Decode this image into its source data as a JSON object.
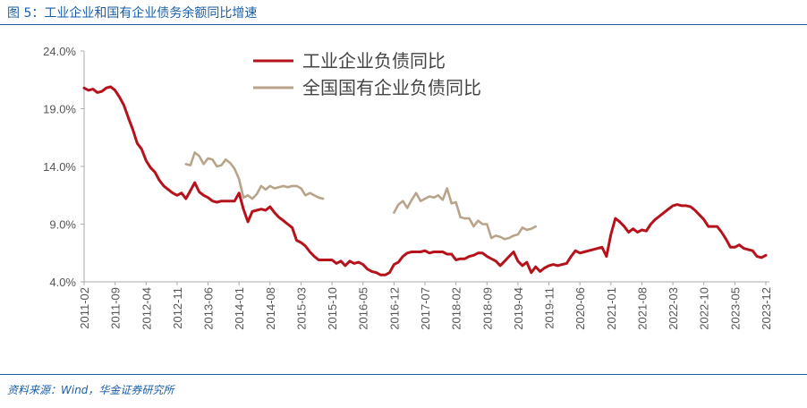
{
  "figure": {
    "title": "图 5：工业企业和国有企业债务余额同比增速",
    "source": "资料来源：Wind，华金证券研究所"
  },
  "colors": {
    "industrial": "#b5121b",
    "soe": "#b8a48a",
    "accent": "#1a5ea8",
    "axis": "#aaaaaa"
  },
  "chart_data": {
    "type": "line",
    "title": "",
    "xlabel": "",
    "ylabel": "",
    "ylim": [
      4.0,
      24.0
    ],
    "yticks": [
      "4.0%",
      "9.0%",
      "14.0%",
      "19.0%",
      "24.0%"
    ],
    "ytick_values": [
      4,
      9,
      14,
      19,
      24
    ],
    "xticks": [
      "2011-02",
      "2011-09",
      "2012-04",
      "2012-11",
      "2013-06",
      "2014-01",
      "2014-08",
      "2015-03",
      "2015-10",
      "2016-05",
      "2016-12",
      "2017-07",
      "2018-02",
      "2018-09",
      "2019-04",
      "2019-11",
      "2020-06",
      "2021-01",
      "2021-08",
      "2022-03",
      "2022-10",
      "2023-05",
      "2023-12"
    ],
    "xrange": [
      "2011-02",
      "2023-12"
    ],
    "grid": false,
    "legend_position": "top-center",
    "series": [
      {
        "name": "工业企业负债同比",
        "color": "#b5121b",
        "points": [
          [
            "2011-02",
            20.8
          ],
          [
            "2011-03",
            20.6
          ],
          [
            "2011-04",
            20.7
          ],
          [
            "2011-05",
            20.4
          ],
          [
            "2011-06",
            20.5
          ],
          [
            "2011-07",
            20.8
          ],
          [
            "2011-08",
            20.9
          ],
          [
            "2011-09",
            20.6
          ],
          [
            "2011-10",
            20.0
          ],
          [
            "2011-11",
            19.3
          ],
          [
            "2011-12",
            18.2
          ],
          [
            "2012-01",
            17.2
          ],
          [
            "2012-02",
            16.0
          ],
          [
            "2012-03",
            15.5
          ],
          [
            "2012-04",
            14.5
          ],
          [
            "2012-05",
            13.9
          ],
          [
            "2012-06",
            13.5
          ],
          [
            "2012-07",
            12.8
          ],
          [
            "2012-08",
            12.3
          ],
          [
            "2012-09",
            12.0
          ],
          [
            "2012-10",
            11.7
          ],
          [
            "2012-11",
            11.5
          ],
          [
            "2012-12",
            11.7
          ],
          [
            "2013-01",
            11.2
          ],
          [
            "2013-02",
            11.9
          ],
          [
            "2013-03",
            12.6
          ],
          [
            "2013-04",
            11.8
          ],
          [
            "2013-05",
            11.5
          ],
          [
            "2013-06",
            11.3
          ],
          [
            "2013-07",
            11.0
          ],
          [
            "2013-08",
            10.9
          ],
          [
            "2013-09",
            11.0
          ],
          [
            "2013-10",
            11.0
          ],
          [
            "2013-11",
            11.0
          ],
          [
            "2013-12",
            11.0
          ],
          [
            "2014-01",
            11.7
          ],
          [
            "2014-02",
            10.3
          ],
          [
            "2014-03",
            9.2
          ],
          [
            "2014-04",
            10.1
          ],
          [
            "2014-05",
            10.2
          ],
          [
            "2014-06",
            10.3
          ],
          [
            "2014-07",
            10.2
          ],
          [
            "2014-08",
            10.5
          ],
          [
            "2014-09",
            10.0
          ],
          [
            "2014-10",
            9.6
          ],
          [
            "2014-11",
            9.3
          ],
          [
            "2014-12",
            9.0
          ],
          [
            "2015-01",
            8.7
          ],
          [
            "2015-02",
            7.6
          ],
          [
            "2015-03",
            7.4
          ],
          [
            "2015-04",
            7.1
          ],
          [
            "2015-05",
            6.6
          ],
          [
            "2015-06",
            6.2
          ],
          [
            "2015-07",
            5.9
          ],
          [
            "2015-08",
            5.9
          ],
          [
            "2015-09",
            5.9
          ],
          [
            "2015-10",
            5.9
          ],
          [
            "2015-11",
            5.6
          ],
          [
            "2015-12",
            5.8
          ],
          [
            "2016-01",
            5.4
          ],
          [
            "2016-02",
            5.8
          ],
          [
            "2016-03",
            5.6
          ],
          [
            "2016-04",
            5.7
          ],
          [
            "2016-05",
            5.5
          ],
          [
            "2016-06",
            5.1
          ],
          [
            "2016-07",
            4.9
          ],
          [
            "2016-08",
            4.8
          ],
          [
            "2016-09",
            4.6
          ],
          [
            "2016-10",
            4.6
          ],
          [
            "2016-11",
            4.8
          ],
          [
            "2016-12",
            5.5
          ],
          [
            "2017-01",
            5.7
          ],
          [
            "2017-02",
            6.2
          ],
          [
            "2017-03",
            6.5
          ],
          [
            "2017-04",
            6.6
          ],
          [
            "2017-05",
            6.6
          ],
          [
            "2017-06",
            6.6
          ],
          [
            "2017-07",
            6.7
          ],
          [
            "2017-08",
            6.5
          ],
          [
            "2017-09",
            6.6
          ],
          [
            "2017-10",
            6.6
          ],
          [
            "2017-11",
            6.6
          ],
          [
            "2017-12",
            6.4
          ],
          [
            "2018-01",
            6.4
          ],
          [
            "2018-02",
            5.9
          ],
          [
            "2018-03",
            6.0
          ],
          [
            "2018-04",
            6.0
          ],
          [
            "2018-05",
            6.2
          ],
          [
            "2018-06",
            6.3
          ],
          [
            "2018-07",
            6.5
          ],
          [
            "2018-08",
            6.5
          ],
          [
            "2018-09",
            6.2
          ],
          [
            "2018-10",
            6.0
          ],
          [
            "2018-11",
            5.8
          ],
          [
            "2018-12",
            5.4
          ],
          [
            "2019-01",
            5.8
          ],
          [
            "2019-02",
            6.2
          ],
          [
            "2019-03",
            6.6
          ],
          [
            "2019-04",
            5.8
          ],
          [
            "2019-05",
            5.4
          ],
          [
            "2019-06",
            5.7
          ],
          [
            "2019-07",
            4.8
          ],
          [
            "2019-08",
            5.3
          ],
          [
            "2019-09",
            4.9
          ],
          [
            "2019-10",
            5.2
          ],
          [
            "2019-11",
            5.4
          ],
          [
            "2019-12",
            5.5
          ],
          [
            "2020-01",
            5.4
          ],
          [
            "2020-02",
            5.5
          ],
          [
            "2020-03",
            5.6
          ],
          [
            "2020-04",
            6.2
          ],
          [
            "2020-05",
            6.7
          ],
          [
            "2020-06",
            6.5
          ],
          [
            "2020-07",
            6.6
          ],
          [
            "2020-08",
            6.7
          ],
          [
            "2020-09",
            6.8
          ],
          [
            "2020-10",
            6.9
          ],
          [
            "2020-11",
            7.0
          ],
          [
            "2020-12",
            6.2
          ],
          [
            "2021-01",
            8.1
          ],
          [
            "2021-02",
            9.5
          ],
          [
            "2021-03",
            9.2
          ],
          [
            "2021-04",
            8.8
          ],
          [
            "2021-05",
            8.3
          ],
          [
            "2021-06",
            8.6
          ],
          [
            "2021-07",
            8.3
          ],
          [
            "2021-08",
            8.5
          ],
          [
            "2021-09",
            8.4
          ],
          [
            "2021-10",
            9.0
          ],
          [
            "2021-11",
            9.4
          ],
          [
            "2021-12",
            9.7
          ],
          [
            "2022-01",
            10.0
          ],
          [
            "2022-02",
            10.3
          ],
          [
            "2022-03",
            10.6
          ],
          [
            "2022-04",
            10.7
          ],
          [
            "2022-05",
            10.6
          ],
          [
            "2022-06",
            10.6
          ],
          [
            "2022-07",
            10.5
          ],
          [
            "2022-08",
            10.2
          ],
          [
            "2022-09",
            9.8
          ],
          [
            "2022-10",
            9.4
          ],
          [
            "2022-11",
            8.8
          ],
          [
            "2022-12",
            8.8
          ],
          [
            "2023-01",
            8.8
          ],
          [
            "2023-02",
            8.3
          ],
          [
            "2023-03",
            7.7
          ],
          [
            "2023-04",
            7.0
          ],
          [
            "2023-05",
            7.0
          ],
          [
            "2023-06",
            7.2
          ],
          [
            "2023-07",
            6.9
          ],
          [
            "2023-08",
            6.8
          ],
          [
            "2023-09",
            6.7
          ],
          [
            "2023-10",
            6.2
          ],
          [
            "2023-11",
            6.1
          ],
          [
            "2023-12",
            6.3
          ]
        ]
      },
      {
        "name": "全国国有企业负债同比",
        "color": "#b8a48a",
        "points": [
          [
            "2013-01",
            14.2
          ],
          [
            "2013-02",
            14.1
          ],
          [
            "2013-03",
            15.2
          ],
          [
            "2013-04",
            14.9
          ],
          [
            "2013-05",
            14.2
          ],
          [
            "2013-06",
            14.7
          ],
          [
            "2013-07",
            14.6
          ],
          [
            "2013-08",
            14.0
          ],
          [
            "2013-09",
            14.1
          ],
          [
            "2013-10",
            14.6
          ],
          [
            "2013-11",
            14.3
          ],
          [
            "2013-12",
            13.8
          ],
          [
            "2014-01",
            12.9
          ],
          [
            "2014-02",
            11.3
          ],
          [
            "2014-03",
            11.5
          ],
          [
            "2014-04",
            11.2
          ],
          [
            "2014-05",
            11.6
          ],
          [
            "2014-06",
            12.3
          ],
          [
            "2014-07",
            12.0
          ],
          [
            "2014-08",
            12.3
          ],
          [
            "2014-09",
            12.1
          ],
          [
            "2014-10",
            12.2
          ],
          [
            "2014-11",
            12.3
          ],
          [
            "2014-12",
            12.2
          ],
          [
            "2015-01",
            12.3
          ],
          [
            "2015-02",
            12.3
          ],
          [
            "2015-03",
            12.1
          ],
          [
            "2015-04",
            11.5
          ],
          [
            "2015-05",
            11.7
          ],
          [
            "2015-06",
            11.5
          ],
          [
            "2015-07",
            11.3
          ],
          [
            "2015-08",
            11.2
          ],
          null,
          [
            "2016-12",
            10.0
          ],
          [
            "2017-01",
            10.7
          ],
          [
            "2017-02",
            11.0
          ],
          [
            "2017-03",
            10.4
          ],
          [
            "2017-04",
            11.1
          ],
          [
            "2017-05",
            11.7
          ],
          [
            "2017-06",
            11.0
          ],
          [
            "2017-07",
            11.2
          ],
          [
            "2017-08",
            11.4
          ],
          [
            "2017-09",
            11.3
          ],
          [
            "2017-10",
            11.5
          ],
          [
            "2017-11",
            11.1
          ],
          [
            "2017-12",
            12.1
          ],
          [
            "2018-01",
            10.8
          ],
          [
            "2018-02",
            10.9
          ],
          [
            "2018-03",
            9.6
          ],
          [
            "2018-04",
            9.5
          ],
          [
            "2018-05",
            9.5
          ],
          [
            "2018-06",
            8.8
          ],
          [
            "2018-07",
            9.3
          ],
          [
            "2018-08",
            9.0
          ],
          [
            "2018-09",
            9.0
          ],
          [
            "2018-10",
            7.8
          ],
          [
            "2018-11",
            8.0
          ],
          [
            "2018-12",
            7.9
          ],
          [
            "2019-01",
            7.7
          ],
          [
            "2019-02",
            7.8
          ],
          [
            "2019-03",
            8.0
          ],
          [
            "2019-04",
            8.1
          ],
          [
            "2019-05",
            8.7
          ],
          [
            "2019-06",
            8.5
          ],
          [
            "2019-07",
            8.6
          ],
          [
            "2019-08",
            8.8
          ]
        ]
      }
    ]
  }
}
